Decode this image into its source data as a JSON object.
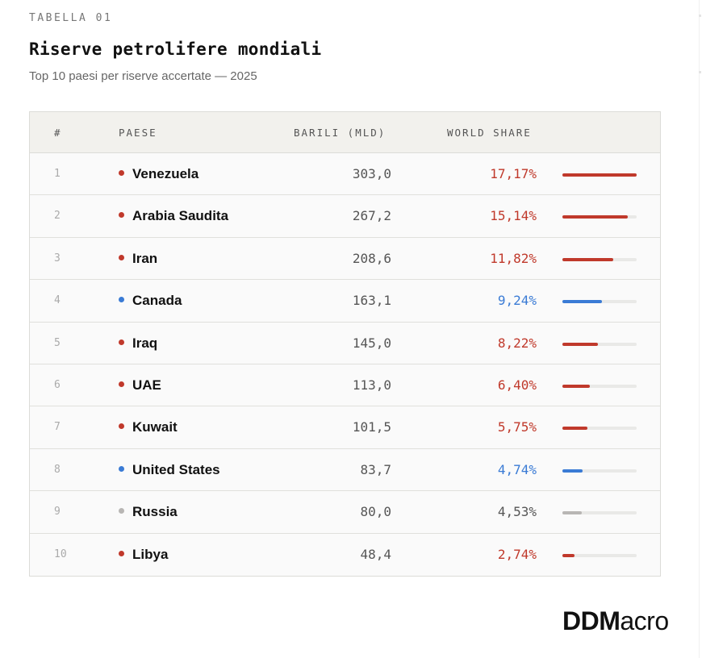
{
  "header": {
    "eyebrow": "TABELLA 01",
    "title": "Riserve petrolifere mondiali",
    "subtitle": "Top 10 paesi per riserve accertate — 2025"
  },
  "table": {
    "columns": [
      "#",
      "PAESE",
      "BARILI (MLD)",
      "WORLD SHARE"
    ],
    "rows": [
      {
        "rank": "1",
        "country": "Venezuela",
        "barrels": "303,0",
        "share": "17,17%",
        "share_value": 17.17,
        "group": "red"
      },
      {
        "rank": "2",
        "country": "Arabia Saudita",
        "barrels": "267,2",
        "share": "15,14%",
        "share_value": 15.14,
        "group": "red"
      },
      {
        "rank": "3",
        "country": "Iran",
        "barrels": "208,6",
        "share": "11,82%",
        "share_value": 11.82,
        "group": "red"
      },
      {
        "rank": "4",
        "country": "Canada",
        "barrels": "163,1",
        "share": "9,24%",
        "share_value": 9.24,
        "group": "blue"
      },
      {
        "rank": "5",
        "country": "Iraq",
        "barrels": "145,0",
        "share": "8,22%",
        "share_value": 8.22,
        "group": "red"
      },
      {
        "rank": "6",
        "country": "UAE",
        "barrels": "113,0",
        "share": "6,40%",
        "share_value": 6.4,
        "group": "red"
      },
      {
        "rank": "7",
        "country": "Kuwait",
        "barrels": "101,5",
        "share": "5,75%",
        "share_value": 5.75,
        "group": "red"
      },
      {
        "rank": "8",
        "country": "United States",
        "barrels": "83,7",
        "share": "4,74%",
        "share_value": 4.74,
        "group": "blue"
      },
      {
        "rank": "9",
        "country": "Russia",
        "barrels": "80,0",
        "share": "4,53%",
        "share_value": 4.53,
        "group": "gray"
      },
      {
        "rank": "10",
        "country": "Libya",
        "barrels": "48,4",
        "share": "2,74%",
        "share_value": 2.74,
        "group": "red"
      }
    ]
  },
  "colors": {
    "red": "#c0392b",
    "blue": "#3a7bd5",
    "gray": "#b8b6b4",
    "gray_text": "#555555"
  },
  "brand": {
    "bold": "DDM",
    "light": "acro"
  }
}
